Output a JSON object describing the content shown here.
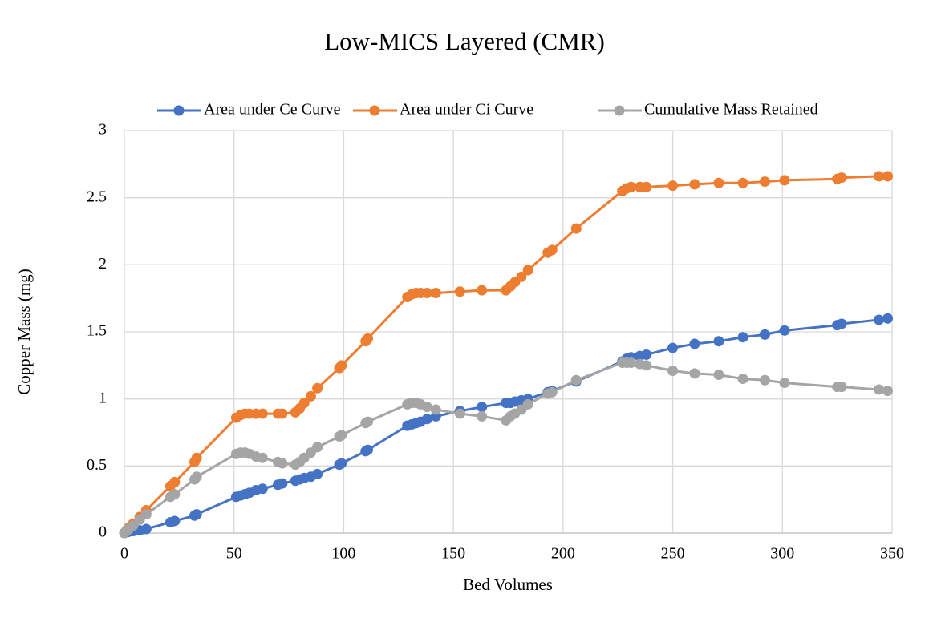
{
  "chart_data": {
    "type": "line",
    "title": "Low-MICS Layered (CMR)",
    "xlabel": "Bed Volumes",
    "ylabel": "Copper Mass (mg)",
    "x": [
      0,
      1,
      2,
      4,
      7,
      10,
      21,
      23,
      32,
      33,
      51,
      53,
      55,
      57,
      60,
      63,
      70,
      72,
      78,
      80,
      82,
      85,
      88,
      98,
      99,
      110,
      111,
      129,
      131,
      133,
      135,
      138,
      142,
      153,
      163,
      174,
      176,
      178,
      181,
      184,
      193,
      195,
      206,
      227,
      229,
      231,
      235,
      238,
      250,
      260,
      271,
      282,
      292,
      301,
      325,
      327,
      344,
      348
    ],
    "series": [
      {
        "name": "Area under Ce Curve",
        "color": "#4472c4",
        "values": [
          0,
          0.005,
          0.01,
          0.015,
          0.02,
          0.03,
          0.08,
          0.09,
          0.13,
          0.14,
          0.27,
          0.28,
          0.29,
          0.3,
          0.32,
          0.33,
          0.36,
          0.37,
          0.39,
          0.4,
          0.41,
          0.42,
          0.44,
          0.51,
          0.52,
          0.61,
          0.62,
          0.8,
          0.81,
          0.82,
          0.83,
          0.85,
          0.87,
          0.91,
          0.94,
          0.97,
          0.97,
          0.98,
          0.99,
          1.0,
          1.05,
          1.06,
          1.13,
          1.28,
          1.3,
          1.31,
          1.32,
          1.33,
          1.38,
          1.41,
          1.43,
          1.46,
          1.48,
          1.51,
          1.55,
          1.56,
          1.59,
          1.6
        ]
      },
      {
        "name": "Area under Ci Curve",
        "color": "#ed7d31",
        "values": [
          0,
          0.02,
          0.04,
          0.07,
          0.12,
          0.17,
          0.35,
          0.38,
          0.53,
          0.56,
          0.86,
          0.88,
          0.89,
          0.89,
          0.89,
          0.89,
          0.89,
          0.89,
          0.9,
          0.93,
          0.97,
          1.02,
          1.08,
          1.23,
          1.25,
          1.43,
          1.45,
          1.76,
          1.78,
          1.79,
          1.79,
          1.79,
          1.79,
          1.8,
          1.81,
          1.81,
          1.84,
          1.87,
          1.91,
          1.96,
          2.09,
          2.11,
          2.27,
          2.55,
          2.57,
          2.58,
          2.58,
          2.58,
          2.59,
          2.6,
          2.61,
          2.61,
          2.62,
          2.63,
          2.64,
          2.65,
          2.66,
          2.66
        ]
      },
      {
        "name": "Cumulative Mass Retained",
        "color": "#a5a5a5",
        "values": [
          0,
          0.015,
          0.03,
          0.055,
          0.1,
          0.14,
          0.27,
          0.29,
          0.4,
          0.42,
          0.59,
          0.6,
          0.6,
          0.59,
          0.57,
          0.56,
          0.53,
          0.52,
          0.51,
          0.53,
          0.56,
          0.6,
          0.64,
          0.72,
          0.73,
          0.82,
          0.83,
          0.96,
          0.97,
          0.97,
          0.96,
          0.94,
          0.92,
          0.89,
          0.87,
          0.84,
          0.87,
          0.89,
          0.92,
          0.96,
          1.04,
          1.05,
          1.14,
          1.27,
          1.27,
          1.27,
          1.26,
          1.25,
          1.21,
          1.19,
          1.18,
          1.15,
          1.14,
          1.12,
          1.09,
          1.09,
          1.07,
          1.06
        ]
      }
    ],
    "xlim": [
      0,
      350
    ],
    "xticks": [
      0,
      50,
      100,
      150,
      200,
      250,
      300,
      350
    ],
    "ylim": [
      0,
      3
    ],
    "yticks": [
      0,
      0.5,
      1,
      1.5,
      2,
      2.5,
      3
    ],
    "grid": true
  }
}
